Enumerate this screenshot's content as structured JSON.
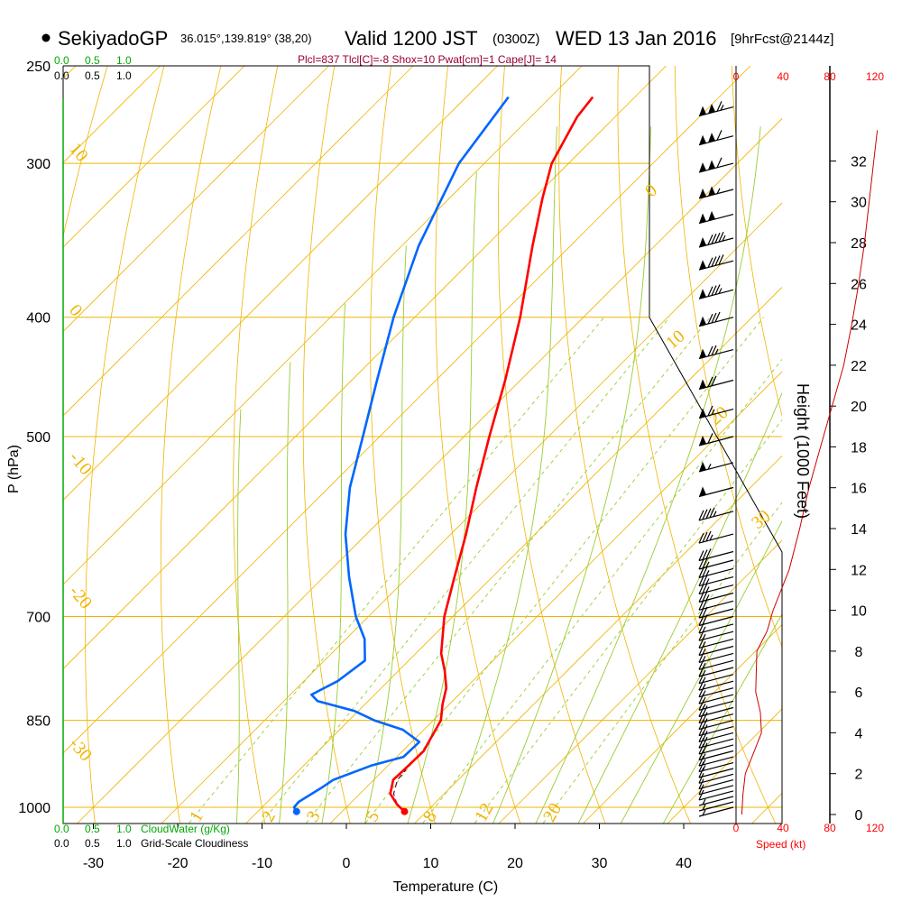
{
  "header": {
    "station": "SekiyadoGP",
    "coords": "36.015°,139.819° (38,20)",
    "valid_label": "Valid 1200 JST",
    "utc": "(0300Z)",
    "date": "WED 13 Jan 2016",
    "forecast": "[9hrFcst@2144z]",
    "indices": "Plcl=837 Tlcl[C]=-8 Shox=10 Pwat[cm]=1 Cape[J]= 14"
  },
  "colors": {
    "isobar": "#f0b400",
    "dry_adiabat": "#f0b400",
    "moist_adiabat": "#99cc33",
    "mixing_ratio": "#99cc33",
    "temperature": "#ff0000",
    "dewpoint": "#0066ff",
    "cloud_axis": "#00aa00",
    "wind_speed": "#cc0000"
  },
  "cloud_top": {
    "ticks": [
      "0.0",
      "0.5",
      "1.0"
    ]
  },
  "cloud_bottom": {
    "cloudwater_ticks": [
      "0.0",
      "0.5",
      "1.0"
    ],
    "cloudwater_label": "CloudWater (g/Kg)",
    "cloudiness_ticks": [
      "0.0",
      "0.5",
      "1.0"
    ],
    "cloudiness_label": "Grid-Scale Cloudiness"
  },
  "wind_axis": {
    "ticks": [
      "0",
      "40",
      "80",
      "120"
    ],
    "label": "Speed (kt)"
  },
  "chart_data": {
    "type": "skew-t",
    "xlabel": "Temperature (C)",
    "ylabel": "P (hPa)",
    "y2label": "Height (1000 Feet)",
    "xlim": [
      -33,
      43
    ],
    "ylim": [
      1000,
      250
    ],
    "x_ticks": [
      -30,
      -20,
      -10,
      0,
      10,
      20,
      30,
      40
    ],
    "p_ticks": [
      250,
      300,
      400,
      500,
      700,
      850,
      1000
    ],
    "height_ticks": [
      0,
      2,
      4,
      6,
      8,
      10,
      12,
      14,
      16,
      18,
      20,
      22,
      24,
      26,
      28,
      30,
      32
    ],
    "dry_adiabat_labels": [
      {
        "value": "10",
        "p": 292
      },
      {
        "value": "0",
        "p": 395
      },
      {
        "value": "-10",
        "p": 520
      },
      {
        "value": "-20",
        "p": 668
      },
      {
        "value": "-30",
        "p": 888
      }
    ],
    "moist_adiabat_labels": [
      {
        "value": "0",
        "p": 320
      },
      {
        "value": "10",
        "p": 425
      },
      {
        "value": "20",
        "p": 490
      },
      {
        "value": "30",
        "p": 595
      }
    ],
    "mixing_ratio_labels": [
      "1",
      "2",
      "3",
      "5",
      "8",
      "12",
      "20"
    ],
    "temperature": [
      {
        "p": 1008,
        "t": 7.4
      },
      {
        "p": 995,
        "t": 5.7
      },
      {
        "p": 975,
        "t": 3.6
      },
      {
        "p": 950,
        "t": 2.3
      },
      {
        "p": 930,
        "t": 2.4
      },
      {
        "p": 900,
        "t": 2.5
      },
      {
        "p": 875,
        "t": 1.7
      },
      {
        "p": 850,
        "t": 0.9
      },
      {
        "p": 825,
        "t": -0.8
      },
      {
        "p": 800,
        "t": -2.3
      },
      {
        "p": 775,
        "t": -4.5
      },
      {
        "p": 750,
        "t": -7.0
      },
      {
        "p": 700,
        "t": -11.0
      },
      {
        "p": 650,
        "t": -14.5
      },
      {
        "p": 600,
        "t": -18.2
      },
      {
        "p": 550,
        "t": -22.5
      },
      {
        "p": 500,
        "t": -27.0
      },
      {
        "p": 450,
        "t": -31.8
      },
      {
        "p": 400,
        "t": -37.5
      },
      {
        "p": 350,
        "t": -44.5
      },
      {
        "p": 320,
        "t": -49.0
      },
      {
        "p": 300,
        "t": -52.0
      },
      {
        "p": 275,
        "t": -54.5
      },
      {
        "p": 265,
        "t": -55.0
      }
    ],
    "dewpoint": [
      {
        "p": 1008,
        "td": -5.4
      },
      {
        "p": 1000,
        "td": -6.2
      },
      {
        "p": 990,
        "td": -6.3
      },
      {
        "p": 965,
        "td": -5.3
      },
      {
        "p": 950,
        "td": -4.8
      },
      {
        "p": 925,
        "td": -2.0
      },
      {
        "p": 910,
        "td": 0.8
      },
      {
        "p": 885,
        "td": 0.9
      },
      {
        "p": 865,
        "td": -2.5
      },
      {
        "p": 850,
        "td": -7.0
      },
      {
        "p": 835,
        "td": -10.5
      },
      {
        "p": 820,
        "td": -16.0
      },
      {
        "p": 810,
        "td": -17.5
      },
      {
        "p": 790,
        "td": -16.0
      },
      {
        "p": 760,
        "td": -15.2
      },
      {
        "p": 730,
        "td": -17.8
      },
      {
        "p": 700,
        "td": -21.5
      },
      {
        "p": 650,
        "td": -27.0
      },
      {
        "p": 600,
        "td": -32.5
      },
      {
        "p": 550,
        "td": -37.5
      },
      {
        "p": 500,
        "td": -42.0
      },
      {
        "p": 450,
        "td": -47.0
      },
      {
        "p": 400,
        "td": -52.5
      },
      {
        "p": 350,
        "td": -58.0
      },
      {
        "p": 300,
        "td": -63.0
      },
      {
        "p": 265,
        "td": -65.0
      }
    ],
    "parcel": [
      {
        "p": 995,
        "t": 5.7
      },
      {
        "p": 975,
        "t": 4.0
      },
      {
        "p": 950,
        "t": 2.8
      },
      {
        "p": 932,
        "t": 2.6
      }
    ],
    "wind_speed_profile": [
      {
        "h": 0,
        "s": 5
      },
      {
        "h": 1,
        "s": 6
      },
      {
        "h": 2,
        "s": 8
      },
      {
        "h": 3,
        "s": 15
      },
      {
        "h": 4,
        "s": 22
      },
      {
        "h": 5,
        "s": 21
      },
      {
        "h": 6,
        "s": 17
      },
      {
        "h": 8,
        "s": 18
      },
      {
        "h": 9,
        "s": 27
      },
      {
        "h": 10,
        "s": 32
      },
      {
        "h": 12,
        "s": 46
      },
      {
        "h": 14,
        "s": 55
      },
      {
        "h": 16,
        "s": 63
      },
      {
        "h": 18,
        "s": 73
      },
      {
        "h": 20,
        "s": 83
      },
      {
        "h": 22,
        "s": 93
      },
      {
        "h": 24,
        "s": 100
      },
      {
        "h": 26,
        "s": 106
      },
      {
        "h": 28,
        "s": 111
      },
      {
        "h": 30,
        "s": 115
      },
      {
        "h": 32,
        "s": 119
      },
      {
        "h": 33.5,
        "s": 122
      }
    ],
    "wind_barbs": [
      {
        "p": 1000,
        "dir": 55,
        "spd": 5
      },
      {
        "p": 990,
        "dir": 55,
        "spd": 5
      },
      {
        "p": 980,
        "dir": 55,
        "spd": 5
      },
      {
        "p": 970,
        "dir": 55,
        "spd": 10
      },
      {
        "p": 960,
        "dir": 55,
        "spd": 10
      },
      {
        "p": 950,
        "dir": 55,
        "spd": 10
      },
      {
        "p": 940,
        "dir": 55,
        "spd": 10
      },
      {
        "p": 930,
        "dir": 55,
        "spd": 10
      },
      {
        "p": 920,
        "dir": 55,
        "spd": 15
      },
      {
        "p": 910,
        "dir": 55,
        "spd": 15
      },
      {
        "p": 900,
        "dir": 55,
        "spd": 15
      },
      {
        "p": 890,
        "dir": 55,
        "spd": 20
      },
      {
        "p": 880,
        "dir": 55,
        "spd": 20
      },
      {
        "p": 870,
        "dir": 55,
        "spd": 20
      },
      {
        "p": 860,
        "dir": 55,
        "spd": 20
      },
      {
        "p": 850,
        "dir": 60,
        "spd": 20
      },
      {
        "p": 840,
        "dir": 65,
        "spd": 20
      },
      {
        "p": 830,
        "dir": 70,
        "spd": 20
      },
      {
        "p": 820,
        "dir": 75,
        "spd": 15
      },
      {
        "p": 810,
        "dir": 75,
        "spd": 15
      },
      {
        "p": 800,
        "dir": 75,
        "spd": 15
      },
      {
        "p": 790,
        "dir": 75,
        "spd": 15
      },
      {
        "p": 780,
        "dir": 75,
        "spd": 15
      },
      {
        "p": 770,
        "dir": 75,
        "spd": 15
      },
      {
        "p": 760,
        "dir": 75,
        "spd": 15
      },
      {
        "p": 750,
        "dir": 75,
        "spd": 15
      },
      {
        "p": 740,
        "dir": 75,
        "spd": 15
      },
      {
        "p": 730,
        "dir": 75,
        "spd": 15
      },
      {
        "p": 720,
        "dir": 75,
        "spd": 15
      },
      {
        "p": 710,
        "dir": 75,
        "spd": 15
      },
      {
        "p": 700,
        "dir": 75,
        "spd": 20
      },
      {
        "p": 690,
        "dir": 75,
        "spd": 20
      },
      {
        "p": 680,
        "dir": 75,
        "spd": 20
      },
      {
        "p": 670,
        "dir": 75,
        "spd": 25
      },
      {
        "p": 660,
        "dir": 75,
        "spd": 25
      },
      {
        "p": 650,
        "dir": 75,
        "spd": 25
      },
      {
        "p": 640,
        "dir": 75,
        "spd": 25
      },
      {
        "p": 630,
        "dir": 75,
        "spd": 25
      },
      {
        "p": 620,
        "dir": 75,
        "spd": 30
      },
      {
        "p": 600,
        "dir": 75,
        "spd": 35
      },
      {
        "p": 575,
        "dir": 75,
        "spd": 45
      },
      {
        "p": 550,
        "dir": 75,
        "spd": 50
      },
      {
        "p": 525,
        "dir": 75,
        "spd": 55
      },
      {
        "p": 500,
        "dir": 75,
        "spd": 60
      },
      {
        "p": 475,
        "dir": 75,
        "spd": 65
      },
      {
        "p": 450,
        "dir": 75,
        "spd": 70
      },
      {
        "p": 425,
        "dir": 75,
        "spd": 75
      },
      {
        "p": 400,
        "dir": 75,
        "spd": 80
      },
      {
        "p": 380,
        "dir": 75,
        "spd": 85
      },
      {
        "p": 360,
        "dir": 75,
        "spd": 90
      },
      {
        "p": 345,
        "dir": 75,
        "spd": 95
      },
      {
        "p": 330,
        "dir": 75,
        "spd": 100
      },
      {
        "p": 315,
        "dir": 75,
        "spd": 105
      },
      {
        "p": 300,
        "dir": 75,
        "spd": 110
      },
      {
        "p": 285,
        "dir": 75,
        "spd": 110
      },
      {
        "p": 270,
        "dir": 75,
        "spd": 115
      }
    ]
  }
}
